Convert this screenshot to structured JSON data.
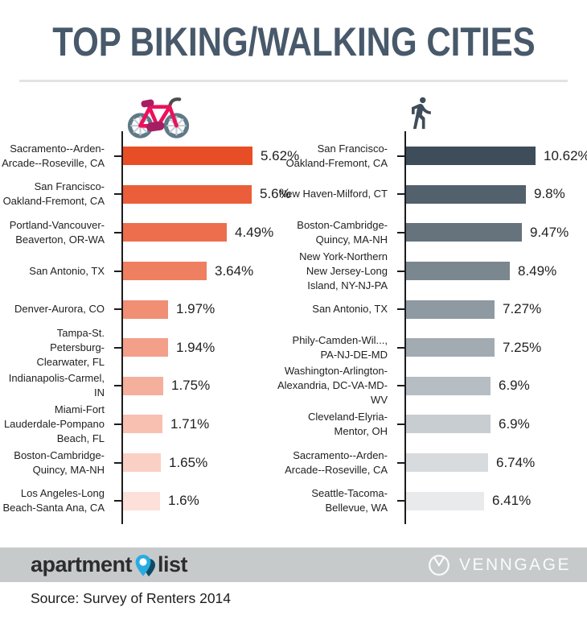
{
  "title": "TOP BIKING/WALKING CITIES",
  "source_note": "Source: Survey of Renters 2014",
  "footer": {
    "apartmentlist_word1": "apartment",
    "apartmentlist_word2": "list",
    "venngage_label": "VENNGAGE",
    "bar_color": "#C6CACB"
  },
  "icons": {
    "left_chart": "bicycle-icon",
    "right_chart": "pedestrian-icon",
    "footer_left": "map-pin-icon",
    "footer_right": "venngage-circle-icon"
  },
  "colors": {
    "title_text": "#47596A",
    "axis": "#1C1C1C",
    "label_text": "#212121",
    "value_text": "#1F1F1F",
    "divider": "#E3E3E3"
  },
  "chart_data": [
    {
      "type": "bar",
      "orientation": "horizontal",
      "series_name": "Top biking cities",
      "legend": "none",
      "grid": false,
      "xlim": [
        0,
        5.62
      ],
      "categories": [
        "Sacramento--Arden-Arcade--Roseville, CA",
        "San Francisco-Oakland-Fremont, CA",
        "Portland-Vancouver-Beaverton, OR-WA",
        "San Antonio, TX",
        "Denver-Aurora, CO",
        "Tampa-St. Petersburg-Clearwater, FL",
        "Indianapolis-Carmel, IN",
        "Miami-Fort Lauderdale-Pompano Beach, FL",
        "Boston-Cambridge-Quincy, MA-NH",
        "Los Angeles-Long Beach-Santa Ana, CA"
      ],
      "values": [
        5.62,
        5.6,
        4.49,
        3.64,
        1.97,
        1.94,
        1.75,
        1.71,
        1.65,
        1.6
      ],
      "value_labels": [
        "5.62%",
        "5.6%",
        "4.49%",
        "3.64%",
        "1.97%",
        "1.94%",
        "1.75%",
        "1.71%",
        "1.65%",
        "1.6%"
      ],
      "bar_colors": [
        "#E84E25",
        "#EA5E39",
        "#EC6E4D",
        "#EF7F61",
        "#F18F75",
        "#F39F89",
        "#F5AF9D",
        "#F8C0B1",
        "#FAD0C5",
        "#FCE0D9"
      ]
    },
    {
      "type": "bar",
      "orientation": "horizontal",
      "series_name": "Top walking cities",
      "legend": "none",
      "grid": false,
      "xlim": [
        0,
        10.62
      ],
      "categories": [
        "San Francisco-Oakland-Fremont, CA",
        "New Haven-Milford, CT",
        "Boston-Cambridge-Quincy, MA-NH",
        "New York-Northern New Jersey-Long Island, NY-NJ-PA",
        "San Antonio, TX",
        "Phily-Camden-Wil..., PA-NJ-DE-MD",
        "Washington-Arlington-Alexandria, DC-VA-MD-WV",
        "Cleveland-Elyria-Mentor, OH",
        "Sacramento--Arden-Arcade--Roseville, CA",
        "Seattle-Tacoma-Bellevue, WA"
      ],
      "values": [
        10.62,
        9.8,
        9.47,
        8.49,
        7.27,
        7.25,
        6.9,
        6.9,
        6.74,
        6.41
      ],
      "value_labels": [
        "10.62%",
        "9.8%",
        "9.47%",
        "8.49%",
        "7.27%",
        "7.25%",
        "6.9%",
        "6.9%",
        "6.74%",
        "6.41%"
      ],
      "bar_colors": [
        "#3E4D59",
        "#52616C",
        "#66737D",
        "#7A878F",
        "#8E99A1",
        "#A2ABB2",
        "#B6BDC3",
        "#C8CDD1",
        "#D8DBDE",
        "#E8EAEC"
      ]
    }
  ]
}
